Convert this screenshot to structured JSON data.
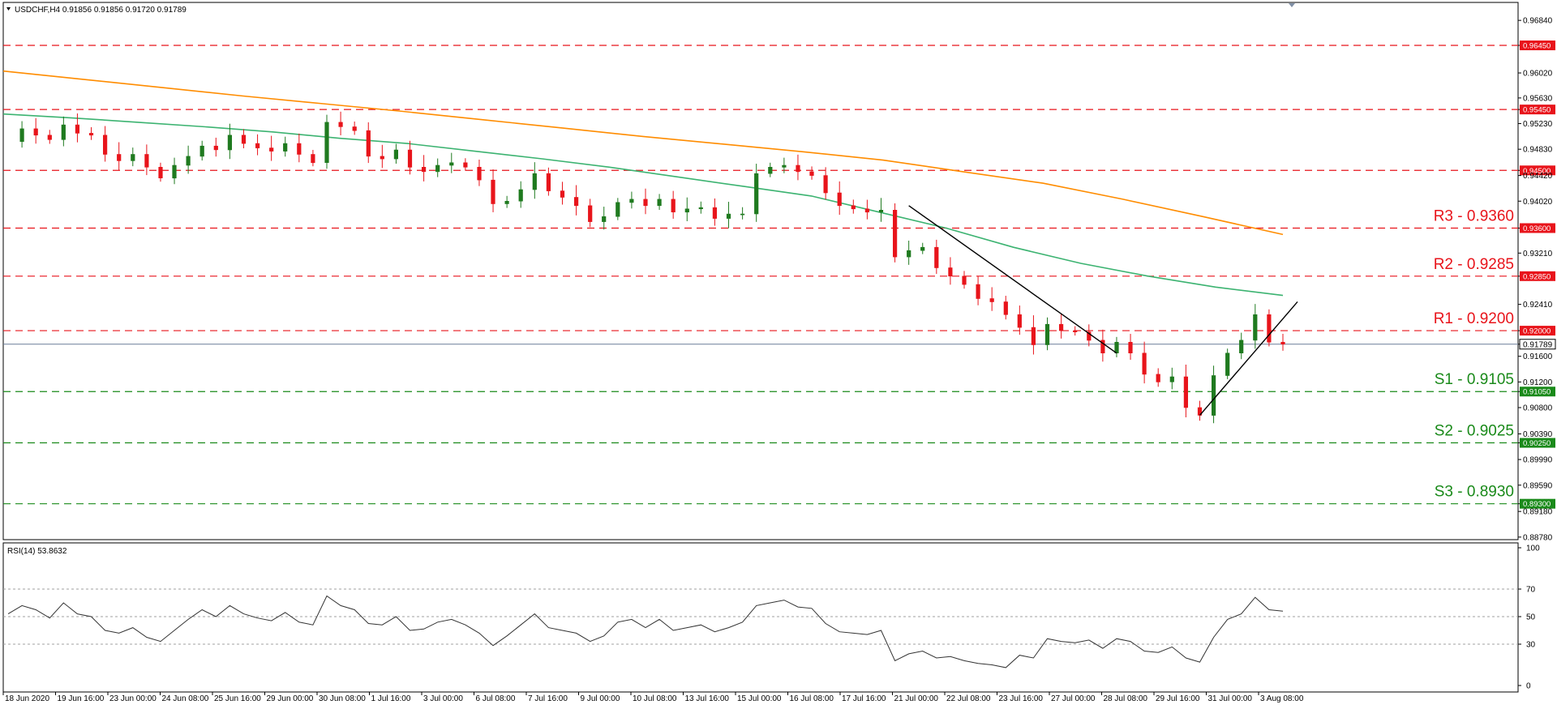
{
  "header": {
    "symbol_text": "USDCHF,H4  0.91856 0.91856 0.91720 0.91789",
    "rsi_text": "RSI(14) 53.8632"
  },
  "colors": {
    "bull": "#1f7a1f",
    "bear": "#e8141b",
    "resistance": "#e8141b",
    "support": "#1a8a1a",
    "ma_fast": "#3cb371",
    "ma_slow": "#ff8c00",
    "trendline": "#000000",
    "current_price": "#6b7d99",
    "rsi_line": "#333333"
  },
  "chart_data": [
    {
      "type": "candlestick",
      "title": "USDCHF,H4",
      "ohlc_header": [
        0.91856,
        0.91856,
        0.9172,
        0.91789
      ],
      "current_price": 0.91789,
      "ylim": [
        0.8874,
        0.9712
      ],
      "y_ticks": [
        "0.96840",
        "0.96450",
        "0.96020",
        "0.95630",
        "0.95450",
        "0.95230",
        "0.94830",
        "0.94500",
        "0.94420",
        "0.94020",
        "0.93600",
        "0.93210",
        "0.92850",
        "0.92410",
        "0.92000",
        "0.91789",
        "0.91600",
        "0.91200",
        "0.91050",
        "0.90800",
        "0.90390",
        "0.90250",
        "0.89990",
        "0.89590",
        "0.89300",
        "0.89180",
        "0.88780"
      ],
      "x_ticks": [
        "18 Jun 2020",
        "19 Jun 16:00",
        "23 Jun 00:00",
        "24 Jun 08:00",
        "25 Jun 16:00",
        "29 Jun 00:00",
        "30 Jun 08:00",
        "1 Jul 16:00",
        "3 Jul 00:00",
        "6 Jul 08:00",
        "7 Jul 16:00",
        "9 Jul 00:00",
        "10 Jul 08:00",
        "13 Jul 16:00",
        "15 Jul 00:00",
        "16 Jul 08:00",
        "17 Jul 16:00",
        "21 Jul 00:00",
        "22 Jul 08:00",
        "23 Jul 16:00",
        "27 Jul 00:00",
        "28 Jul 08:00",
        "29 Jul 16:00",
        "31 Jul 00:00",
        "3 Aug 08:00"
      ],
      "levels": [
        {
          "kind": "marker",
          "value": 0.9645,
          "tag": "0.96450",
          "label": ""
        },
        {
          "kind": "marker",
          "value": 0.9545,
          "tag": "0.95450",
          "label": ""
        },
        {
          "kind": "marker",
          "value": 0.945,
          "tag": "0.94500",
          "label": ""
        },
        {
          "kind": "resistance",
          "value": 0.936,
          "tag": "0.93600",
          "label": "R3 - 0.9360"
        },
        {
          "kind": "resistance",
          "value": 0.9285,
          "tag": "0.92850",
          "label": "R2 - 0.9285"
        },
        {
          "kind": "resistance",
          "value": 0.92,
          "tag": "0.92000",
          "label": "R1 - 0.9200"
        },
        {
          "kind": "support",
          "value": 0.9105,
          "tag": "0.91050",
          "label": "S1 - 0.9105"
        },
        {
          "kind": "support",
          "value": 0.9025,
          "tag": "0.90250",
          "label": "S2 - 0.9025"
        },
        {
          "kind": "support",
          "value": 0.893,
          "tag": "0.89300",
          "label": "S3 - 0.8930"
        }
      ],
      "close_path": [
        0.9495,
        0.9515,
        0.9505,
        0.9498,
        0.9521,
        0.9508,
        0.9505,
        0.9475,
        0.9465,
        0.9475,
        0.9455,
        0.9438,
        0.9458,
        0.9472,
        0.9488,
        0.9482,
        0.9505,
        0.9492,
        0.9485,
        0.948,
        0.9492,
        0.9475,
        0.9462,
        0.9525,
        0.9518,
        0.9512,
        0.9472,
        0.9468,
        0.9482,
        0.9455,
        0.9448,
        0.9458,
        0.9462,
        0.9455,
        0.9435,
        0.9398,
        0.9402,
        0.942,
        0.9445,
        0.9418,
        0.9408,
        0.9395,
        0.937,
        0.9378,
        0.94,
        0.9405,
        0.9395,
        0.9405,
        0.9385,
        0.939,
        0.9392,
        0.9375,
        0.9382,
        0.9382,
        0.9445,
        0.9455,
        0.9458,
        0.9448,
        0.9442,
        0.9415,
        0.9395,
        0.939,
        0.9385,
        0.9388,
        0.9315,
        0.9325,
        0.933,
        0.9298,
        0.9285,
        0.9272,
        0.925,
        0.9245,
        0.9225,
        0.9205,
        0.9178,
        0.921,
        0.92,
        0.9198,
        0.9185,
        0.9165,
        0.9182,
        0.9165,
        0.9132,
        0.912,
        0.9128,
        0.908,
        0.9068,
        0.913,
        0.9165,
        0.9185,
        0.9225,
        0.9182,
        0.9179
      ],
      "ma_fast": [
        0.9538,
        0.9532,
        0.9525,
        0.9518,
        0.951,
        0.95,
        0.9492,
        0.948,
        0.9468,
        0.9455,
        0.944,
        0.9425,
        0.941,
        0.9385,
        0.936,
        0.933,
        0.9305,
        0.9285,
        0.9268,
        0.9255
      ],
      "ma_slow": [
        0.9605,
        0.9592,
        0.9579,
        0.9566,
        0.9554,
        0.9542,
        0.9529,
        0.9516,
        0.9503,
        0.9491,
        0.9479,
        0.9466,
        0.9448,
        0.943,
        0.9405,
        0.9378,
        0.935
      ],
      "trendlines": [
        {
          "from": [
            0.9395,
            0.9392
          ],
          "to": [
            0.9165,
            0.9165
          ],
          "from_bar": 65,
          "to_bar": 80
        },
        {
          "from": [
            0.9068,
            0.9068
          ],
          "to": [
            0.9245,
            0.9245
          ],
          "from_bar": 86,
          "to_bar": 92
        }
      ]
    },
    {
      "type": "line",
      "title": "RSI(14) 53.8632",
      "ylim": [
        0,
        100
      ],
      "y_ticks": [
        100,
        70,
        50,
        30,
        0
      ],
      "levels": [
        70,
        50,
        30
      ],
      "values": [
        52,
        58,
        55,
        49,
        60,
        52,
        50,
        40,
        38,
        42,
        35,
        32,
        40,
        48,
        55,
        50,
        58,
        52,
        49,
        47,
        53,
        46,
        44,
        65,
        58,
        55,
        45,
        44,
        50,
        40,
        41,
        46,
        48,
        44,
        38,
        29,
        36,
        44,
        52,
        42,
        40,
        38,
        32,
        36,
        46,
        48,
        42,
        48,
        40,
        42,
        44,
        39,
        42,
        46,
        58,
        60,
        62,
        57,
        56,
        45,
        39,
        38,
        37,
        40,
        18,
        23,
        25,
        20,
        21,
        18,
        16,
        15,
        13,
        22,
        20,
        34,
        32,
        31,
        33,
        27,
        34,
        32,
        25,
        24,
        28,
        20,
        17,
        35,
        48,
        52,
        64,
        55,
        54
      ]
    }
  ]
}
